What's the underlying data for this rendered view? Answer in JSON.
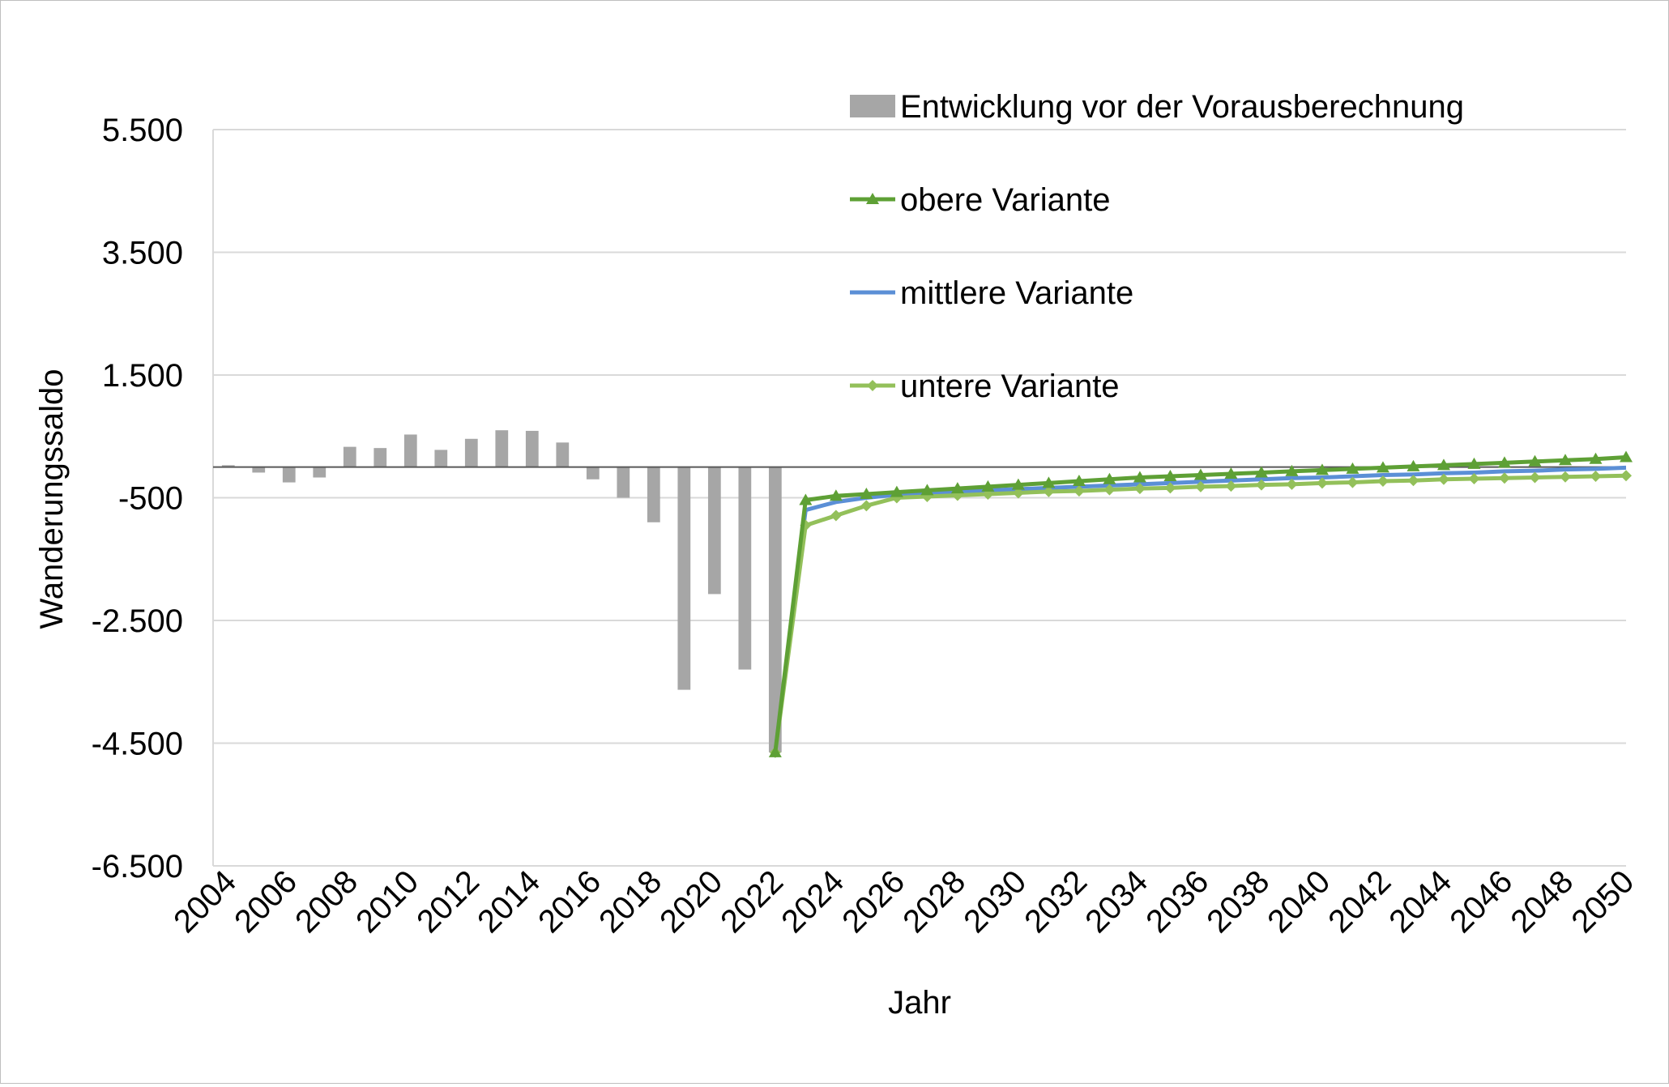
{
  "chart_data": {
    "type": "bar+line",
    "title": "",
    "xlabel": "Jahr",
    "ylabel": "Wanderungssaldo",
    "ylim": [
      -6500,
      5500
    ],
    "yticks": [
      5500,
      3500,
      1500,
      -500,
      -2500,
      -4500,
      -6500
    ],
    "ytick_labels": [
      "5.500",
      "3.500",
      "1.500",
      "-500",
      "-2.500",
      "-4.500",
      "-6.500"
    ],
    "xticks": [
      2004,
      2006,
      2008,
      2010,
      2012,
      2014,
      2016,
      2018,
      2020,
      2022,
      2024,
      2026,
      2028,
      2030,
      2032,
      2034,
      2036,
      2038,
      2040,
      2042,
      2044,
      2046,
      2048,
      2050
    ],
    "x_range": [
      2004,
      2050
    ],
    "grid": "horizontal",
    "legend_position": "top-right",
    "colors": {
      "bars": "#a6a6a6",
      "obere": "#5ea035",
      "mittlere": "#5b8fd6",
      "untere": "#93c05a",
      "grid": "#d9d9d9",
      "axis": "#595959"
    },
    "bars": {
      "name": "Entwicklung vor der Vorausberechnung",
      "x": [
        2004,
        2005,
        2006,
        2007,
        2008,
        2009,
        2010,
        2011,
        2012,
        2013,
        2014,
        2015,
        2016,
        2017,
        2018,
        2019,
        2020,
        2021,
        2022
      ],
      "values": [
        30,
        -90,
        -250,
        -170,
        330,
        310,
        530,
        280,
        460,
        600,
        590,
        400,
        -200,
        -500,
        -900,
        -3630,
        -2070,
        -3300,
        -4650
      ]
    },
    "series": [
      {
        "name": "obere Variante",
        "marker": "triangle",
        "x": [
          2022,
          2023,
          2024,
          2025,
          2026,
          2027,
          2028,
          2029,
          2030,
          2031,
          2032,
          2033,
          2034,
          2035,
          2036,
          2037,
          2038,
          2039,
          2040,
          2041,
          2042,
          2043,
          2044,
          2045,
          2046,
          2047,
          2048,
          2049,
          2050
        ],
        "values": [
          -4650,
          -540,
          -470,
          -440,
          -410,
          -380,
          -350,
          -320,
          -290,
          -260,
          -230,
          -200,
          -170,
          -150,
          -130,
          -110,
          -90,
          -70,
          -50,
          -30,
          -10,
          10,
          30,
          50,
          70,
          90,
          110,
          130,
          160
        ]
      },
      {
        "name": "mittlere Variante",
        "marker": "none",
        "x": [
          2022,
          2023,
          2024,
          2025,
          2026,
          2027,
          2028,
          2029,
          2030,
          2031,
          2032,
          2033,
          2034,
          2035,
          2036,
          2037,
          2038,
          2039,
          2040,
          2041,
          2042,
          2043,
          2044,
          2045,
          2046,
          2047,
          2048,
          2049,
          2050
        ],
        "values": [
          -4650,
          -700,
          -570,
          -500,
          -450,
          -420,
          -400,
          -380,
          -360,
          -340,
          -320,
          -300,
          -280,
          -260,
          -240,
          -220,
          -200,
          -180,
          -170,
          -150,
          -130,
          -120,
          -100,
          -90,
          -70,
          -60,
          -40,
          -30,
          -10
        ]
      },
      {
        "name": "untere Variante",
        "marker": "diamond",
        "x": [
          2022,
          2023,
          2024,
          2025,
          2026,
          2027,
          2028,
          2029,
          2030,
          2031,
          2032,
          2033,
          2034,
          2035,
          2036,
          2037,
          2038,
          2039,
          2040,
          2041,
          2042,
          2043,
          2044,
          2045,
          2046,
          2047,
          2048,
          2049,
          2050
        ],
        "values": [
          -4650,
          -950,
          -790,
          -630,
          -500,
          -480,
          -460,
          -440,
          -420,
          -400,
          -390,
          -370,
          -350,
          -340,
          -320,
          -310,
          -290,
          -280,
          -260,
          -250,
          -230,
          -220,
          -200,
          -190,
          -180,
          -170,
          -160,
          -150,
          -140
        ]
      }
    ]
  }
}
